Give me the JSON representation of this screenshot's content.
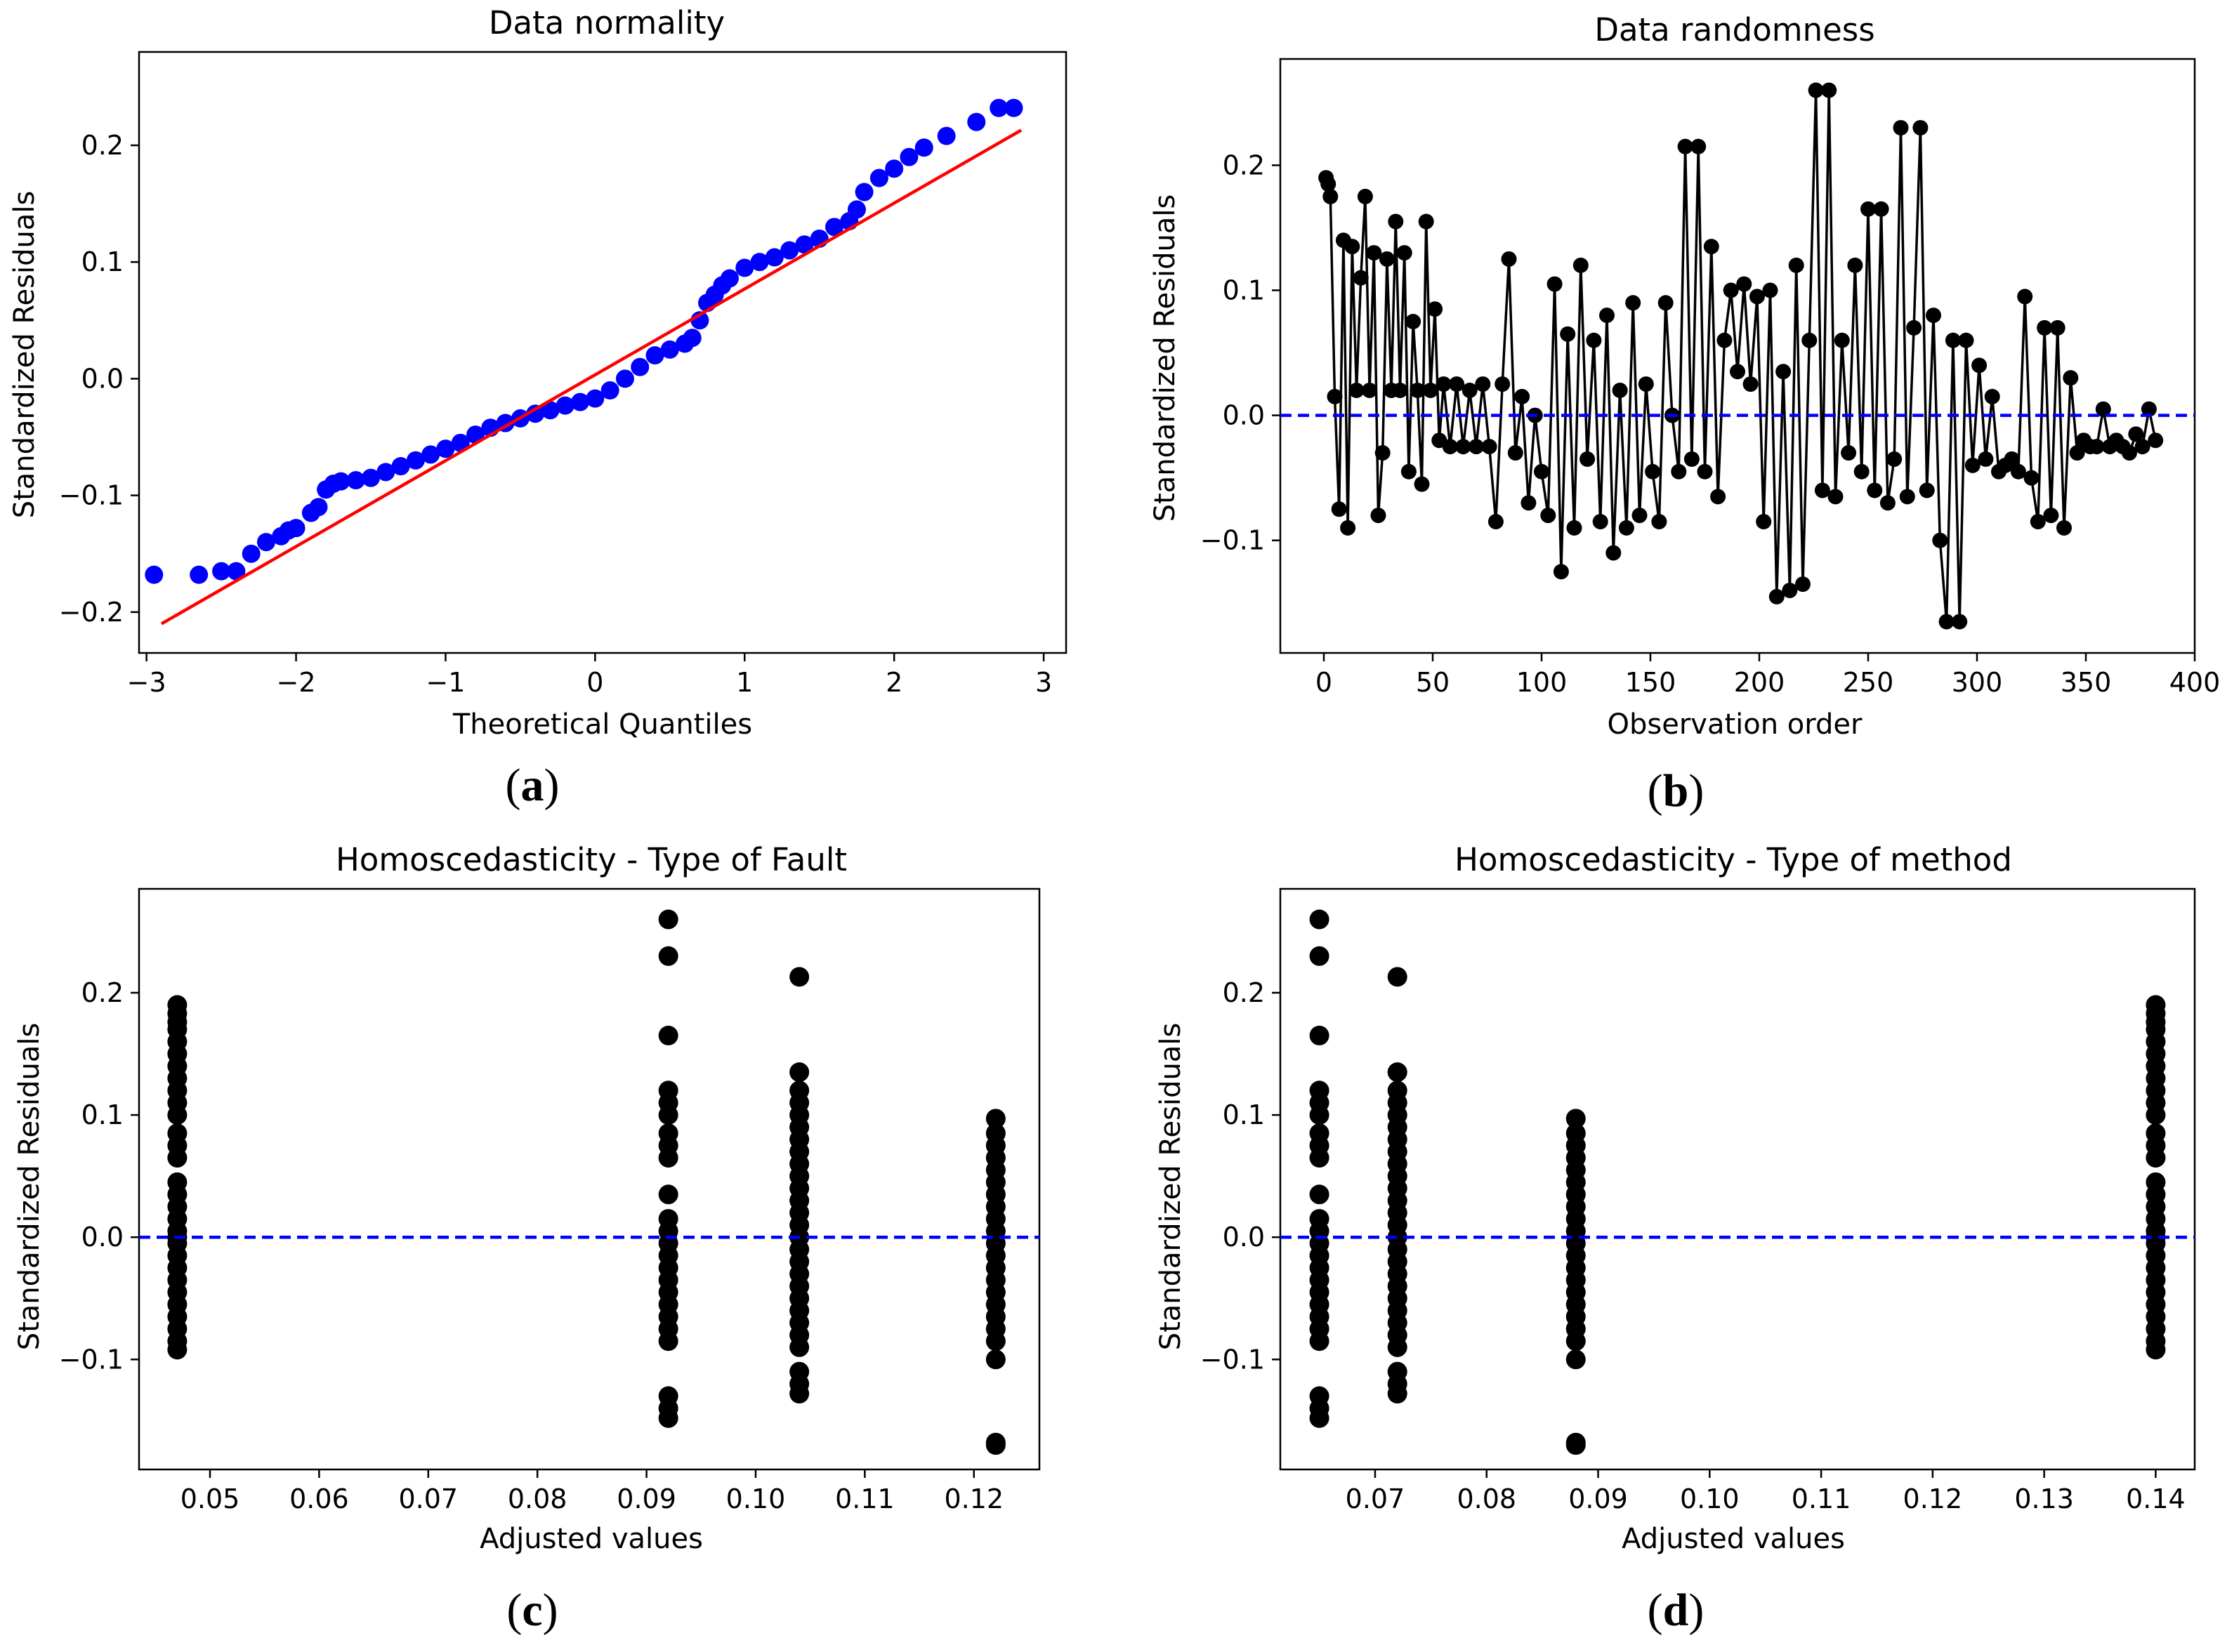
{
  "panels": [
    {
      "id": "a",
      "label": "(a)",
      "label_letter": "a",
      "title": "Data normality",
      "xlabel": "Theoretical Quantiles",
      "ylabel": "Standardized Residuals"
    },
    {
      "id": "b",
      "label": "(b)",
      "label_letter": "b",
      "title": "Data randomness",
      "xlabel": "Observation order",
      "ylabel": "Standardized Residuals"
    },
    {
      "id": "c",
      "label": "(c)",
      "label_letter": "c",
      "title": "Homoscedasticity - Type of Fault",
      "xlabel": "Adjusted values",
      "ylabel": "Standardized Residuals"
    },
    {
      "id": "d",
      "label": "(d)",
      "label_letter": "d",
      "title": "Homoscedasticity - Type of method",
      "xlabel": "Adjusted values",
      "ylabel": "Standardized Residuals"
    }
  ],
  "colors": {
    "qq_points": "#0000ff",
    "qq_line": "#ff0000",
    "points": "#000000",
    "zero_line": "#0000ff",
    "axes": "#000000"
  },
  "chart_data": [
    {
      "type": "scatter",
      "title": "Data normality",
      "xlabel": "Theoretical Quantiles",
      "ylabel": "Standardized Residuals",
      "xlim": [
        -3.05,
        3.15
      ],
      "ylim": [
        -0.235,
        0.28
      ],
      "xticks": [
        -3,
        -2,
        -1,
        0,
        1,
        2,
        3
      ],
      "yticks": [
        -0.2,
        -0.1,
        0.0,
        0.1,
        0.2
      ],
      "xtick_labels": [
        "−3",
        "−2",
        "−1",
        "0",
        "1",
        "2",
        "3"
      ],
      "ytick_labels": [
        "−0.2",
        "−0.1",
        "0.0",
        "0.1",
        "0.2"
      ],
      "reference_line": {
        "x": [
          -2.9,
          2.85
        ],
        "y": [
          -0.21,
          0.213
        ]
      },
      "points": {
        "x": [
          -2.95,
          -2.65,
          -2.5,
          -2.4,
          -2.3,
          -2.2,
          -2.1,
          -2.05,
          -2.0,
          -1.9,
          -1.85,
          -1.8,
          -1.75,
          -1.7,
          -1.6,
          -1.5,
          -1.4,
          -1.3,
          -1.2,
          -1.1,
          -1.0,
          -0.9,
          -0.8,
          -0.7,
          -0.6,
          -0.5,
          -0.4,
          -0.3,
          -0.2,
          -0.1,
          0.0,
          0.1,
          0.2,
          0.3,
          0.4,
          0.5,
          0.6,
          0.65,
          0.7,
          0.75,
          0.8,
          0.85,
          0.9,
          1.0,
          1.1,
          1.2,
          1.3,
          1.4,
          1.5,
          1.6,
          1.7,
          1.75,
          1.8,
          1.9,
          2.0,
          2.1,
          2.2,
          2.35,
          2.55,
          2.7,
          2.8
        ],
        "y": [
          -0.168,
          -0.168,
          -0.165,
          -0.165,
          -0.15,
          -0.14,
          -0.135,
          -0.13,
          -0.128,
          -0.115,
          -0.11,
          -0.095,
          -0.09,
          -0.088,
          -0.087,
          -0.085,
          -0.08,
          -0.075,
          -0.07,
          -0.065,
          -0.06,
          -0.055,
          -0.048,
          -0.042,
          -0.038,
          -0.034,
          -0.03,
          -0.027,
          -0.023,
          -0.02,
          -0.017,
          -0.01,
          0.0,
          0.01,
          0.02,
          0.025,
          0.03,
          0.035,
          0.05,
          0.065,
          0.072,
          0.08,
          0.086,
          0.095,
          0.1,
          0.104,
          0.11,
          0.115,
          0.12,
          0.13,
          0.135,
          0.145,
          0.16,
          0.172,
          0.18,
          0.19,
          0.198,
          0.208,
          0.22,
          0.232,
          0.232
        ]
      }
    },
    {
      "type": "line",
      "title": "Data randomness",
      "xlabel": "Observation order",
      "ylabel": "Standardized Residuals",
      "xlim": [
        -20,
        400
      ],
      "ylim": [
        -0.19,
        0.285
      ],
      "xticks": [
        0,
        50,
        100,
        150,
        200,
        250,
        300,
        350,
        400
      ],
      "yticks": [
        -0.1,
        0.0,
        0.1,
        0.2
      ],
      "xtick_labels": [
        "0",
        "50",
        "100",
        "150",
        "200",
        "250",
        "300",
        "350",
        "400"
      ],
      "ytick_labels": [
        "−0.1",
        "0.0",
        "0.1",
        "0.2"
      ],
      "zero_line": 0.0,
      "x": [
        1,
        2,
        3,
        5,
        7,
        9,
        11,
        13,
        15,
        17,
        19,
        21,
        23,
        25,
        27,
        29,
        31,
        33,
        35,
        37,
        39,
        41,
        43,
        45,
        47,
        49,
        51,
        53,
        55,
        58,
        61,
        64,
        67,
        70,
        73,
        76,
        79,
        82,
        85,
        88,
        91,
        94,
        97,
        100,
        103,
        106,
        109,
        112,
        115,
        118,
        121,
        124,
        127,
        130,
        133,
        136,
        139,
        142,
        145,
        148,
        151,
        154,
        157,
        160,
        163,
        166,
        169,
        172,
        175,
        178,
        181,
        184,
        187,
        190,
        193,
        196,
        199,
        202,
        205,
        208,
        211,
        214,
        217,
        220,
        223,
        226,
        229,
        232,
        235,
        238,
        241,
        244,
        247,
        250,
        253,
        256,
        259,
        262,
        265,
        268,
        271,
        274,
        277,
        280,
        283,
        286,
        289,
        292,
        295,
        298,
        301,
        304,
        307,
        310,
        313,
        316,
        319,
        322,
        325,
        328,
        331,
        334,
        337,
        340,
        343,
        346,
        349,
        352,
        355,
        358,
        361,
        364,
        367,
        370,
        373,
        376,
        379,
        382
      ],
      "y": [
        0.19,
        0.185,
        0.175,
        0.015,
        -0.075,
        0.14,
        -0.09,
        0.135,
        0.02,
        0.11,
        0.175,
        0.02,
        0.13,
        -0.08,
        -0.03,
        0.125,
        0.02,
        0.155,
        0.02,
        0.13,
        -0.045,
        0.075,
        0.02,
        -0.055,
        0.155,
        0.02,
        0.085,
        -0.02,
        0.025,
        -0.025,
        0.025,
        -0.025,
        0.02,
        -0.025,
        0.025,
        -0.025,
        -0.085,
        0.025,
        0.125,
        -0.03,
        0.015,
        -0.07,
        0.0,
        -0.045,
        -0.08,
        0.105,
        -0.125,
        0.065,
        -0.09,
        0.12,
        -0.035,
        0.06,
        -0.085,
        0.08,
        -0.11,
        0.02,
        -0.09,
        0.09,
        -0.08,
        0.025,
        -0.045,
        -0.085,
        0.09,
        0.0,
        -0.045,
        0.215,
        -0.035,
        0.215,
        -0.045,
        0.135,
        -0.065,
        0.06,
        0.1,
        0.035,
        0.105,
        0.025,
        0.095,
        -0.085,
        0.1,
        -0.145,
        0.035,
        -0.14,
        0.12,
        -0.135,
        0.06,
        0.26,
        -0.06,
        0.26,
        -0.065,
        0.06,
        -0.03,
        0.12,
        -0.045,
        0.165,
        -0.06,
        0.165,
        -0.07,
        -0.035,
        0.23,
        -0.065,
        0.07,
        0.23,
        -0.06,
        0.08,
        -0.1,
        -0.165,
        0.06,
        -0.165,
        0.06,
        -0.04,
        0.04,
        -0.035,
        0.015,
        -0.045,
        -0.04,
        -0.035,
        -0.045,
        0.095,
        -0.05,
        -0.085,
        0.07,
        -0.08,
        0.07,
        -0.09,
        0.03,
        -0.03,
        -0.02,
        -0.025,
        -0.025,
        0.005,
        -0.025,
        -0.02,
        -0.025,
        -0.03,
        -0.015,
        -0.025,
        0.005,
        -0.02
      ]
    },
    {
      "type": "scatter",
      "title": "Homoscedasticity - Type of Fault",
      "xlabel": "Adjusted values",
      "ylabel": "Standardized Residuals",
      "xlim": [
        0.0435,
        0.126
      ],
      "ylim": [
        -0.19,
        0.285
      ],
      "xticks": [
        0.05,
        0.06,
        0.07,
        0.08,
        0.09,
        0.1,
        0.11,
        0.12
      ],
      "yticks": [
        -0.1,
        0.0,
        0.1,
        0.2
      ],
      "xtick_labels": [
        "0.05",
        "0.06",
        "0.07",
        "0.08",
        "0.09",
        "0.10",
        "0.11",
        "0.12"
      ],
      "ytick_labels": [
        "−0.1",
        "0.0",
        "0.1",
        "0.2"
      ],
      "zero_line": 0.0,
      "groups": [
        {
          "x": 0.047,
          "y": [
            0.19,
            0.183,
            0.176,
            0.17,
            0.16,
            0.15,
            0.14,
            0.13,
            0.12,
            0.11,
            0.1,
            0.085,
            0.075,
            0.065,
            0.045,
            0.035,
            0.025,
            0.015,
            0.005,
            0.0,
            -0.005,
            -0.015,
            -0.025,
            -0.035,
            -0.045,
            -0.055,
            -0.065,
            -0.075,
            -0.085,
            -0.092
          ]
        },
        {
          "x": 0.092,
          "y": [
            0.26,
            0.23,
            0.165,
            0.12,
            0.11,
            0.1,
            0.085,
            0.075,
            0.065,
            0.035,
            0.015,
            0.005,
            -0.005,
            -0.015,
            -0.025,
            -0.035,
            -0.045,
            -0.055,
            -0.065,
            -0.075,
            -0.085,
            -0.13,
            -0.14,
            -0.148
          ]
        },
        {
          "x": 0.104,
          "y": [
            0.213,
            0.135,
            0.12,
            0.11,
            0.1,
            0.09,
            0.08,
            0.07,
            0.06,
            0.05,
            0.04,
            0.03,
            0.02,
            0.01,
            0.0,
            -0.01,
            -0.02,
            -0.03,
            -0.04,
            -0.05,
            -0.06,
            -0.07,
            -0.08,
            -0.09,
            -0.11,
            -0.12,
            -0.128
          ]
        },
        {
          "x": 0.122,
          "y": [
            0.097,
            0.085,
            0.075,
            0.065,
            0.055,
            0.045,
            0.035,
            0.025,
            0.015,
            0.005,
            -0.005,
            -0.015,
            -0.025,
            -0.035,
            -0.045,
            -0.055,
            -0.065,
            -0.075,
            -0.085,
            -0.1,
            -0.168,
            -0.17
          ]
        }
      ]
    },
    {
      "type": "scatter",
      "title": "Homoscedasticity - Type of method",
      "xlabel": "Adjusted values",
      "ylabel": "Standardized Residuals",
      "xlim": [
        0.0615,
        0.1435
      ],
      "ylim": [
        -0.19,
        0.285
      ],
      "xticks": [
        0.07,
        0.08,
        0.09,
        0.1,
        0.11,
        0.12,
        0.13,
        0.14
      ],
      "yticks": [
        -0.1,
        0.0,
        0.1,
        0.2
      ],
      "xtick_labels": [
        "0.07",
        "0.08",
        "0.09",
        "0.10",
        "0.11",
        "0.12",
        "0.13",
        "0.14"
      ],
      "ytick_labels": [
        "−0.1",
        "0.0",
        "0.1",
        "0.2"
      ],
      "zero_line": 0.0,
      "groups": [
        {
          "x": 0.065,
          "y": [
            0.26,
            0.23,
            0.165,
            0.12,
            0.11,
            0.1,
            0.085,
            0.075,
            0.065,
            0.035,
            0.015,
            0.005,
            -0.005,
            -0.015,
            -0.025,
            -0.035,
            -0.045,
            -0.055,
            -0.065,
            -0.075,
            -0.085,
            -0.13,
            -0.14,
            -0.148
          ]
        },
        {
          "x": 0.072,
          "y": [
            0.213,
            0.135,
            0.12,
            0.11,
            0.1,
            0.09,
            0.08,
            0.07,
            0.06,
            0.05,
            0.04,
            0.03,
            0.02,
            0.01,
            0.0,
            -0.01,
            -0.02,
            -0.03,
            -0.04,
            -0.05,
            -0.06,
            -0.07,
            -0.08,
            -0.09,
            -0.11,
            -0.12,
            -0.128
          ]
        },
        {
          "x": 0.088,
          "y": [
            0.097,
            0.085,
            0.075,
            0.065,
            0.055,
            0.045,
            0.035,
            0.025,
            0.015,
            0.005,
            -0.005,
            -0.015,
            -0.025,
            -0.035,
            -0.045,
            -0.055,
            -0.065,
            -0.075,
            -0.085,
            -0.1,
            -0.168,
            -0.17
          ]
        },
        {
          "x": 0.14,
          "y": [
            0.19,
            0.183,
            0.176,
            0.17,
            0.16,
            0.15,
            0.14,
            0.13,
            0.12,
            0.11,
            0.1,
            0.085,
            0.075,
            0.065,
            0.045,
            0.035,
            0.025,
            0.015,
            0.005,
            0.0,
            -0.005,
            -0.015,
            -0.025,
            -0.035,
            -0.045,
            -0.055,
            -0.065,
            -0.075,
            -0.085,
            -0.092
          ]
        }
      ]
    }
  ]
}
